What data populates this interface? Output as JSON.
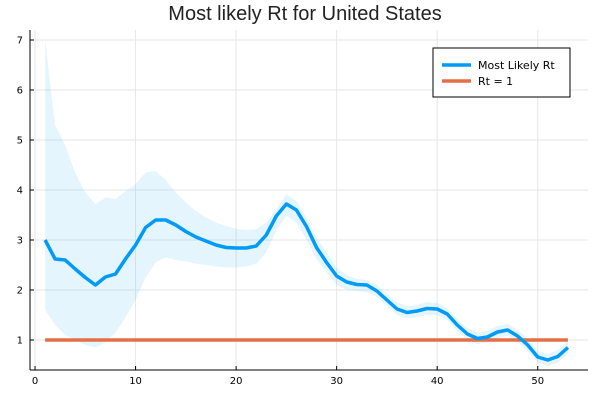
{
  "chart_data": {
    "type": "line",
    "title": "Most likely Rt for United States",
    "xlabel": "",
    "ylabel": "",
    "xlim": [
      -0.5,
      55
    ],
    "ylim": [
      0.4,
      7.2
    ],
    "xticks": [
      0,
      10,
      20,
      30,
      40,
      50
    ],
    "yticks": [
      1,
      2,
      3,
      4,
      5,
      6,
      7
    ],
    "grid": true,
    "legend_position": "top-right",
    "series": [
      {
        "name": "Most Likely Rt",
        "color": "#009AF9",
        "x": [
          1,
          2,
          3,
          4,
          5,
          6,
          7,
          8,
          9,
          10,
          11,
          12,
          13,
          14,
          15,
          16,
          17,
          18,
          19,
          20,
          21,
          22,
          23,
          24,
          25,
          26,
          27,
          28,
          29,
          30,
          31,
          32,
          33,
          34,
          35,
          36,
          37,
          38,
          39,
          40,
          41,
          42,
          43,
          44,
          45,
          46,
          47,
          48,
          49,
          50,
          51,
          52,
          53
        ],
        "values": [
          3.0,
          2.62,
          2.6,
          2.42,
          2.25,
          2.1,
          2.26,
          2.32,
          2.62,
          2.9,
          3.25,
          3.4,
          3.4,
          3.3,
          3.17,
          3.06,
          2.98,
          2.9,
          2.85,
          2.84,
          2.84,
          2.88,
          3.1,
          3.48,
          3.72,
          3.6,
          3.27,
          2.85,
          2.55,
          2.28,
          2.16,
          2.11,
          2.1,
          1.98,
          1.8,
          1.62,
          1.55,
          1.58,
          1.63,
          1.62,
          1.52,
          1.3,
          1.12,
          1.03,
          1.06,
          1.16,
          1.2,
          1.08,
          0.9,
          0.66,
          0.6,
          0.67,
          0.85
        ]
      },
      {
        "name": "Rt = 1",
        "color": "#E26F46",
        "x": [
          1,
          53
        ],
        "values": [
          1.0,
          1.0
        ]
      }
    ],
    "confidence_band": {
      "color": "#009AF9",
      "x": [
        1,
        2,
        3,
        4,
        5,
        6,
        7,
        8,
        9,
        10,
        11,
        12,
        13,
        14,
        15,
        16,
        17,
        18,
        19,
        20,
        21,
        22,
        23,
        24,
        25,
        26,
        27,
        28,
        29,
        30,
        31,
        32,
        33,
        34,
        35,
        36,
        37,
        38,
        39,
        40,
        41,
        42,
        43,
        44,
        45,
        46,
        47,
        48,
        49,
        50,
        51,
        52,
        53
      ],
      "upper": [
        7.0,
        5.3,
        4.9,
        4.35,
        3.95,
        3.72,
        3.85,
        3.82,
        3.98,
        4.12,
        4.35,
        4.38,
        4.2,
        3.95,
        3.75,
        3.58,
        3.45,
        3.35,
        3.28,
        3.22,
        3.2,
        3.22,
        3.35,
        3.62,
        3.92,
        3.78,
        3.45,
        3.05,
        2.75,
        2.45,
        2.3,
        2.22,
        2.2,
        2.1,
        1.92,
        1.75,
        1.68,
        1.7,
        1.76,
        1.74,
        1.64,
        1.42,
        1.24,
        1.15,
        1.18,
        1.28,
        1.32,
        1.2,
        1.02,
        0.78,
        0.72,
        0.8,
        0.98
      ],
      "lower": [
        1.6,
        1.3,
        1.1,
        1.0,
        0.9,
        0.85,
        0.95,
        1.15,
        1.45,
        1.8,
        2.25,
        2.55,
        2.65,
        2.6,
        2.57,
        2.53,
        2.5,
        2.47,
        2.45,
        2.45,
        2.47,
        2.52,
        2.75,
        3.2,
        3.48,
        3.35,
        3.0,
        2.62,
        2.35,
        2.1,
        2.0,
        1.98,
        1.96,
        1.86,
        1.68,
        1.5,
        1.43,
        1.46,
        1.5,
        1.5,
        1.4,
        1.18,
        1.0,
        0.92,
        0.95,
        1.04,
        1.08,
        0.96,
        0.78,
        0.55,
        0.48,
        0.55,
        0.72
      ]
    }
  }
}
